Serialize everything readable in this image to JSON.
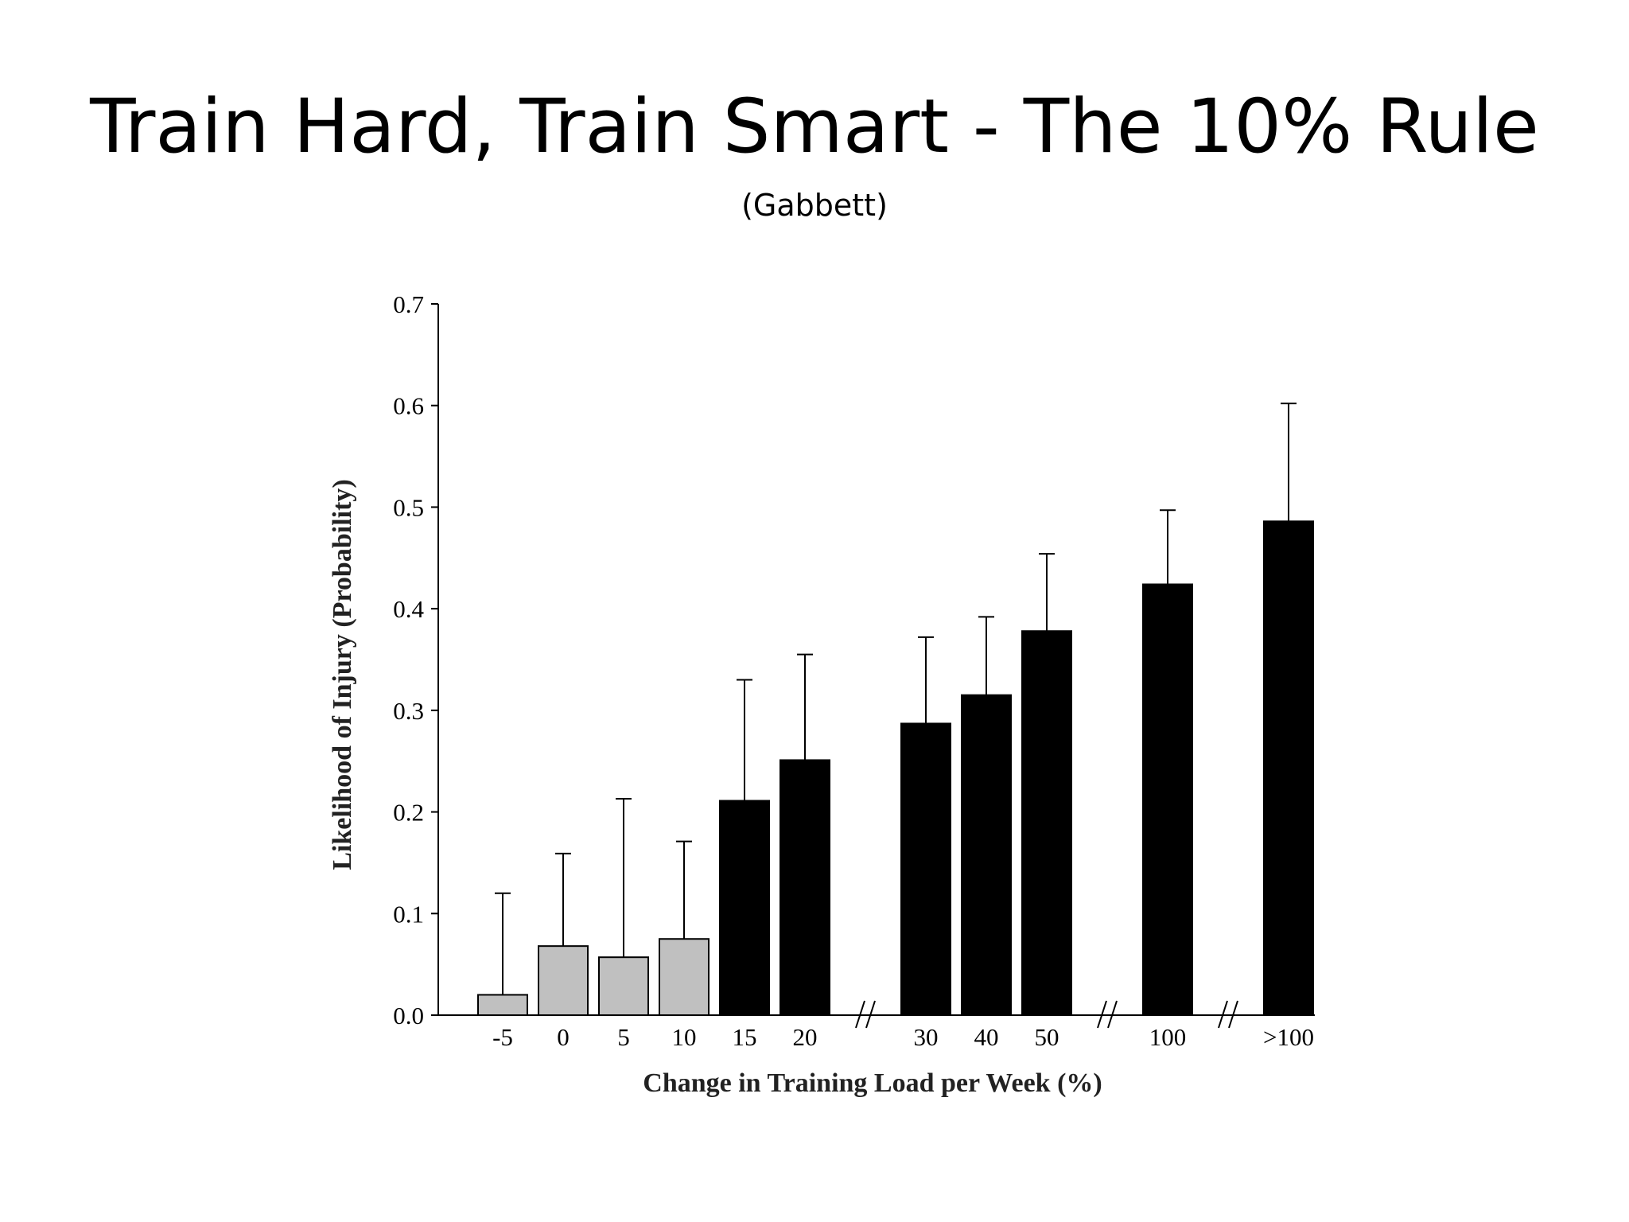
{
  "slide": {
    "title": "Train Hard, Train Smart - The 10% Rule",
    "subtitle": "(Gabbett)"
  },
  "chart_data": {
    "type": "bar",
    "title": "",
    "xlabel": "Change in Training Load per Week (%)",
    "ylabel": "Likelihood of Injury (Probability)",
    "ylim": [
      0,
      0.7
    ],
    "yticks": [
      "0.0",
      "0.1",
      "0.2",
      "0.3",
      "0.4",
      "0.5",
      "0.6",
      "0.7"
    ],
    "categories": [
      "-5",
      "0",
      "5",
      "10",
      "15",
      "20",
      "30",
      "40",
      "50",
      "100",
      ">100"
    ],
    "values": [
      0.02,
      0.068,
      0.057,
      0.075,
      0.211,
      0.251,
      0.287,
      0.315,
      0.378,
      0.424,
      0.486
    ],
    "error_upper": [
      0.12,
      0.159,
      0.213,
      0.171,
      0.33,
      0.355,
      0.372,
      0.392,
      0.454,
      0.497,
      0.602
    ],
    "bar_colors": [
      "#c0c0c0",
      "#c0c0c0",
      "#c0c0c0",
      "#c0c0c0",
      "#000000",
      "#000000",
      "#000000",
      "#000000",
      "#000000",
      "#000000",
      "#000000"
    ],
    "axis_breaks_after": [
      "20",
      "50",
      "100"
    ],
    "grid": false,
    "legend": "none"
  }
}
